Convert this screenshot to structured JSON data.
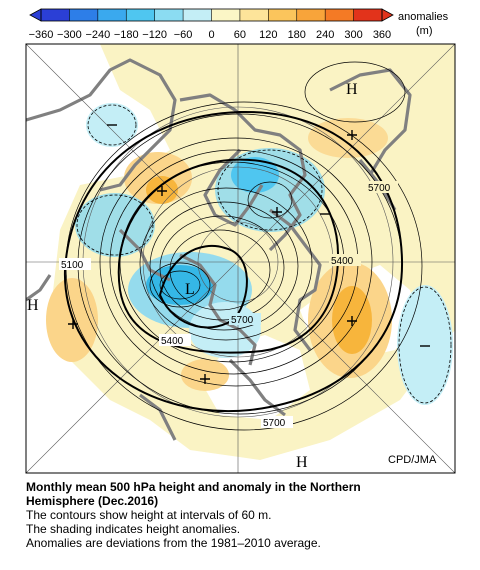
{
  "colorbar": {
    "units_label": "anomalies",
    "units": "(m)",
    "ticks": [
      "−360",
      "−300",
      "−240",
      "−180",
      "−120",
      "−60",
      "0",
      "60",
      "120",
      "180",
      "240",
      "300",
      "360"
    ],
    "colors": [
      "#2b3fd6",
      "#2d7ee8",
      "#3aa9ee",
      "#4fc6f0",
      "#8bdcf2",
      "#c4eef6",
      "#fbf6c6",
      "#fde49a",
      "#fbc55c",
      "#f8a43a",
      "#f47a25",
      "#e2331b"
    ]
  },
  "map": {
    "credit": "CPD/JMA",
    "contour_labels": [
      "5700",
      "5400",
      "5100",
      "5400",
      "5700",
      "5700"
    ],
    "center_labels": {
      "high": "H",
      "low": "L"
    },
    "palette": {
      "land": "#faf3c4",
      "ocean": "#ffffff",
      "coast": "#808080",
      "neg": "#8fd9ef",
      "neg_strong": "#35b7e6",
      "pos": "#fbd58a",
      "pos_strong": "#f7b53c"
    }
  },
  "caption": {
    "title_line1": "Monthly mean 500 hPa height and anomaly in the Northern",
    "title_line2": "Hemisphere (Dec.2016)",
    "line1": "The contours show height at intervals of 60 m.",
    "line2": "The shading indicates height anomalies.",
    "line3": "Anomalies are deviations from the 1981–2010 average."
  }
}
